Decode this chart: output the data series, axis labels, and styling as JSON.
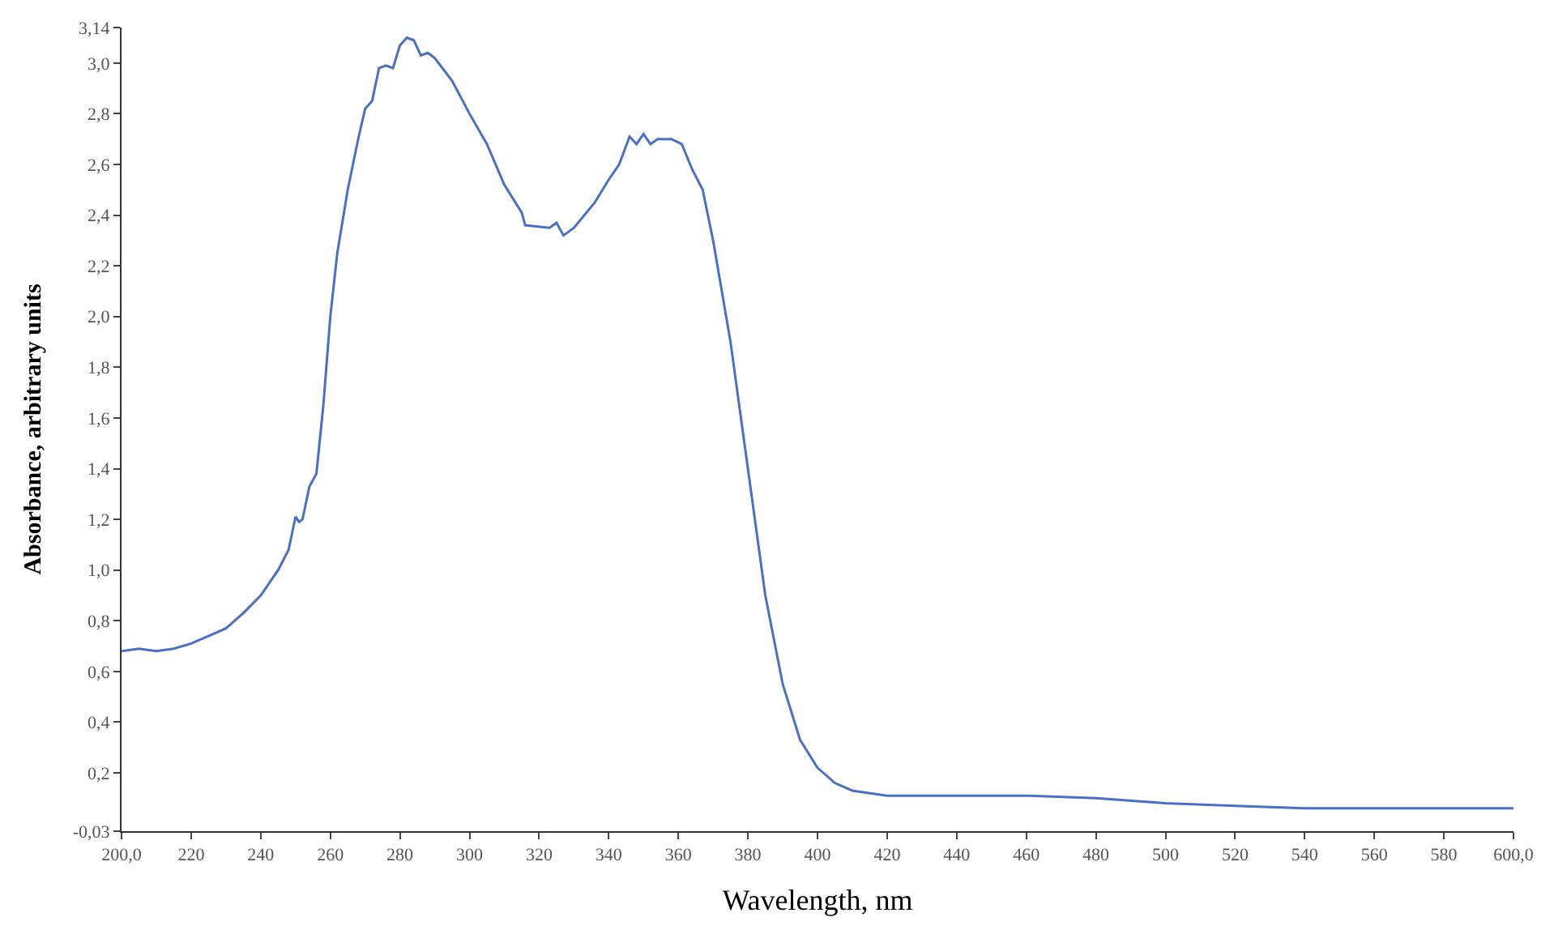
{
  "chart_data": {
    "type": "line",
    "xlabel": "Wavelength, nm",
    "ylabel": "Absorbance, arbitrary units",
    "legend": false,
    "marker": "none",
    "line_style": "solid",
    "xlim": [
      200,
      600
    ],
    "ylim": [
      -0.03,
      3.14
    ],
    "xticks": [
      {
        "value": 200,
        "label": "200,0"
      },
      220,
      240,
      260,
      280,
      300,
      320,
      340,
      360,
      380,
      400,
      420,
      440,
      460,
      480,
      500,
      520,
      540,
      560,
      580,
      {
        "value": 600,
        "label": "600,0"
      }
    ],
    "yticks": [
      {
        "value": -0.03,
        "label": "-0,03"
      },
      {
        "value": 0.2,
        "label": "0,2"
      },
      {
        "value": 0.4,
        "label": "0,4"
      },
      {
        "value": 0.6,
        "label": "0,6"
      },
      {
        "value": 0.8,
        "label": "0,8"
      },
      {
        "value": 1.0,
        "label": "1,0"
      },
      {
        "value": 1.2,
        "label": "1,2"
      },
      {
        "value": 1.4,
        "label": "1,4"
      },
      {
        "value": 1.6,
        "label": "1,6"
      },
      {
        "value": 1.8,
        "label": "1,8"
      },
      {
        "value": 2.0,
        "label": "2,0"
      },
      {
        "value": 2.2,
        "label": "2,2"
      },
      {
        "value": 2.4,
        "label": "2,4"
      },
      {
        "value": 2.6,
        "label": "2,6"
      },
      {
        "value": 2.8,
        "label": "2,8"
      },
      {
        "value": 3.0,
        "label": "3,0"
      },
      {
        "value": 3.14,
        "label": "3,14"
      }
    ],
    "x": [
      200,
      205,
      210,
      215,
      220,
      225,
      230,
      235,
      240,
      245,
      248,
      250,
      251,
      252,
      254,
      256,
      258,
      260,
      262,
      265,
      268,
      270,
      272,
      274,
      276,
      278,
      280,
      282,
      284,
      286,
      288,
      290,
      295,
      300,
      305,
      310,
      315,
      316,
      323,
      325,
      327,
      330,
      336,
      340,
      343,
      346,
      348,
      350,
      352,
      354,
      356,
      358,
      361,
      364,
      367,
      370,
      375,
      380,
      385,
      390,
      395,
      400,
      405,
      410,
      420,
      460,
      480,
      500,
      520,
      540,
      600
    ],
    "series": [
      {
        "color": "#4a6fc8",
        "values": [
          0.68,
          0.69,
          0.68,
          0.69,
          0.71,
          0.74,
          0.77,
          0.83,
          0.9,
          1.0,
          1.08,
          1.21,
          1.19,
          1.2,
          1.33,
          1.38,
          1.65,
          2.0,
          2.25,
          2.5,
          2.7,
          2.82,
          2.85,
          2.98,
          2.99,
          2.98,
          3.07,
          3.1,
          3.09,
          3.03,
          3.04,
          3.02,
          2.93,
          2.8,
          2.68,
          2.52,
          2.41,
          2.36,
          2.35,
          2.37,
          2.32,
          2.35,
          2.45,
          2.54,
          2.6,
          2.71,
          2.68,
          2.72,
          2.68,
          2.7,
          2.7,
          2.7,
          2.68,
          2.58,
          2.5,
          2.3,
          1.9,
          1.4,
          0.9,
          0.55,
          0.33,
          0.22,
          0.16,
          0.13,
          0.11,
          0.11,
          0.1,
          0.08,
          0.07,
          0.06,
          0.06
        ]
      }
    ]
  }
}
